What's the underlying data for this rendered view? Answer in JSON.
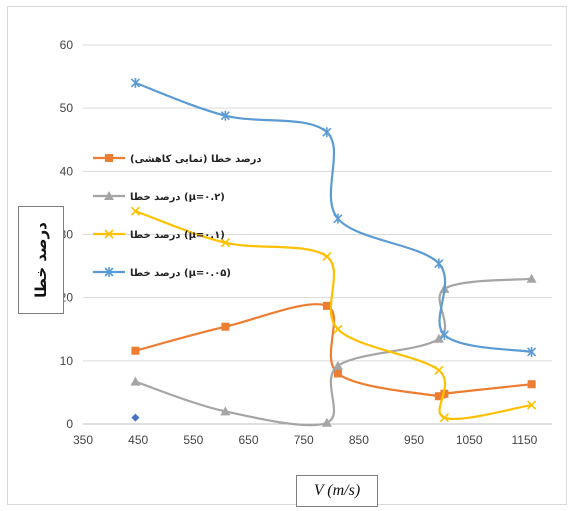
{
  "chart_data": {
    "type": "scatter",
    "title": "",
    "xlabel": "V (m/s)",
    "ylabel": "درصد خطا",
    "xlim": [
      350,
      1200
    ],
    "ylim": [
      0,
      60
    ],
    "xticks": [
      350,
      450,
      550,
      650,
      750,
      850,
      950,
      1050,
      1150
    ],
    "yticks": [
      0,
      10,
      20,
      30,
      40,
      50,
      60
    ],
    "grid": "horizontal",
    "legend_position": "left, inside plot",
    "series": [
      {
        "name": "درصد خطا (تمایی کاهشی)",
        "color": "#ED7D31",
        "marker": "square",
        "x": [
          445,
          608,
          792,
          812,
          995,
          1005,
          1163
        ],
        "y": [
          11.6,
          15.4,
          18.7,
          8.0,
          4.4,
          4.8,
          6.3
        ]
      },
      {
        "name": "درصد خطا (µ=۰.۲)",
        "color": "#A5A5A5",
        "marker": "triangle",
        "x": [
          445,
          608,
          792,
          812,
          995,
          1005,
          1163
        ],
        "y": [
          6.7,
          2.0,
          0.2,
          9.2,
          13.5,
          21.4,
          23.0
        ]
      },
      {
        "name": "درصد خطا (µ=۰.۱)",
        "color": "#FFC000",
        "marker": "x",
        "x": [
          445,
          608,
          792,
          812,
          995,
          1005,
          1163
        ],
        "y": [
          33.7,
          28.7,
          26.5,
          15.0,
          8.5,
          1.0,
          3.0
        ]
      },
      {
        "name": "درصد خطا (µ=۰.۰۵)",
        "color": "#5B9BD5",
        "marker": "star",
        "x": [
          445,
          608,
          792,
          812,
          995,
          1005,
          1163
        ],
        "y": [
          54.0,
          48.8,
          46.2,
          32.5,
          25.4,
          14.1,
          11.4
        ]
      }
    ],
    "extra_points": [
      {
        "x": 445,
        "y": 1.0,
        "color": "#4472C4",
        "marker": "diamond"
      }
    ]
  }
}
